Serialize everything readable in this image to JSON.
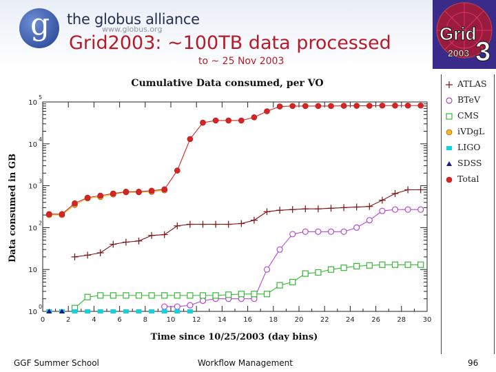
{
  "header": {
    "brand_name": "the globus alliance",
    "brand_url": "www.globus.org",
    "logo_letter": "g",
    "title": "Grid2003: ~100TB data processed",
    "subtitle": "to ~ 25 Nov 2003",
    "grid_logo_top": "Grid",
    "grid_logo_bottom": "2003",
    "grid_logo_digit": "3"
  },
  "footer": {
    "left": "GGF Summer School",
    "center": "Workflow Management",
    "page_number": "96"
  },
  "colors": {
    "title_red": "#b81a28",
    "atlas": "#7a1010",
    "btev": "#b545d2",
    "cms": "#34b834",
    "ivdgl": "#e8c21a",
    "ligo": "#10d2e0",
    "sdss": "#1a1a8c",
    "total": "#d42424"
  },
  "chart_data": {
    "type": "line",
    "title": "Cumulative Data consumed, per VO",
    "xlabel": "Time since 10/25/2003 (day bins)",
    "ylabel": "Data consumed in GB",
    "yscale": "log",
    "xlim": [
      0,
      30
    ],
    "ylim": [
      1,
      100000
    ],
    "xticks": [
      0,
      2,
      4,
      6,
      8,
      10,
      12,
      14,
      16,
      18,
      20,
      22,
      24,
      26,
      28,
      30
    ],
    "xtick_labels": [
      "0",
      "2",
      "4",
      "6",
      "8",
      "10",
      "12",
      "14",
      "16",
      "18",
      "20",
      "22",
      "24",
      "26",
      "28",
      "30"
    ],
    "yticks": [
      {
        "base": "10",
        "exp": "0",
        "value": 1
      },
      {
        "base": "10",
        "exp": "",
        "value": 10
      },
      {
        "base": "10",
        "exp": "2",
        "value": 100
      },
      {
        "base": "10",
        "exp": "3",
        "value": 1000
      },
      {
        "base": "10",
        "exp": "4",
        "value": 10000
      },
      {
        "base": "10",
        "exp": "5",
        "value": 100000
      }
    ],
    "series": [
      {
        "name": "ATLAS",
        "marker": "plus",
        "color": "#7a1010",
        "x": [
          2.5,
          3.5,
          4.5,
          5.5,
          6.5,
          7.5,
          8.5,
          9.5,
          10.5,
          11.5,
          12.5,
          13.5,
          14.5,
          15.5,
          16.5,
          17.5,
          18.5,
          19.5,
          20.5,
          21.5,
          22.5,
          23.5,
          24.5,
          25.5,
          26.5,
          27.5,
          28.5,
          29.5
        ],
        "y": [
          20,
          22,
          25,
          40,
          45,
          48,
          65,
          68,
          110,
          120,
          120,
          120,
          120,
          125,
          150,
          240,
          260,
          270,
          280,
          280,
          290,
          300,
          310,
          320,
          450,
          650,
          800,
          800
        ]
      },
      {
        "name": "BTeV",
        "marker": "circle",
        "color": "#b545d2",
        "x": [
          9.5,
          10.5,
          11.5,
          12.5,
          13.5,
          14.5,
          15.5,
          16.5,
          17.5,
          18.5,
          19.5,
          20.5,
          21.5,
          22.5,
          23.5,
          24.5,
          25.5,
          26.5,
          27.5,
          28.5,
          29.5
        ],
        "y": [
          1.3,
          1.3,
          1.4,
          1.8,
          2.0,
          2.0,
          2.0,
          2.0,
          10,
          30,
          70,
          80,
          80,
          80,
          80,
          100,
          150,
          250,
          270,
          270,
          270
        ]
      },
      {
        "name": "CMS",
        "marker": "square",
        "color": "#34b834",
        "x": [
          2.5,
          3.5,
          4.5,
          5.5,
          6.5,
          7.5,
          8.5,
          9.5,
          10.5,
          11.5,
          12.5,
          13.5,
          14.5,
          15.5,
          16.5,
          17.5,
          18.5,
          19.5,
          20.5,
          21.5,
          22.5,
          23.5,
          24.5,
          25.5,
          26.5,
          27.5,
          28.5,
          29.5
        ],
        "y": [
          1.2,
          2.2,
          2.4,
          2.4,
          2.4,
          2.4,
          2.4,
          2.4,
          2.4,
          2.4,
          2.4,
          2.4,
          2.5,
          2.6,
          2.6,
          2.6,
          4.2,
          5.0,
          8.0,
          8.5,
          10,
          11,
          12,
          12.5,
          13,
          13,
          13,
          13
        ]
      },
      {
        "name": "iVDgL",
        "marker": "dot",
        "color": "#e8c21a",
        "x": [
          0.5,
          1.5,
          2.5,
          3.5,
          4.5,
          5.5,
          6.5,
          7.5,
          8.5,
          9.5
        ],
        "y": [
          200,
          200,
          350,
          500,
          540,
          620,
          700,
          700,
          720,
          780
        ]
      },
      {
        "name": "LIGO",
        "marker": "bigsquare",
        "color": "#10d2e0",
        "x": [
          0.5,
          1.5,
          2.5,
          3.5,
          4.5,
          5.5,
          6.5,
          7.5,
          8.5,
          9.5,
          10.5,
          11.5
        ],
        "y": [
          1,
          1,
          1,
          1,
          1,
          1,
          1,
          1,
          1,
          1,
          1,
          1
        ]
      },
      {
        "name": "SDSS",
        "marker": "triangle",
        "color": "#1a1a8c",
        "x": [
          0.5,
          1.5
        ],
        "y": [
          1,
          1
        ]
      },
      {
        "name": "Total",
        "marker": "dot",
        "color": "#d42424",
        "x": [
          0.5,
          1.5,
          2.5,
          3.5,
          4.5,
          5.5,
          6.5,
          7.5,
          8.5,
          9.5,
          10.5,
          11.5,
          12.5,
          13.5,
          14.5,
          15.5,
          16.5,
          17.5,
          18.5,
          19.5,
          20.5,
          21.5,
          22.5,
          23.5,
          24.5,
          25.5,
          26.5,
          27.5,
          28.5,
          29.5
        ],
        "y": [
          210,
          210,
          380,
          520,
          580,
          650,
          720,
          720,
          760,
          820,
          2300,
          13000,
          32000,
          36000,
          36000,
          36000,
          43000,
          60000,
          78000,
          80000,
          80000,
          80000,
          80000,
          81000,
          81000,
          81000,
          82000,
          82000,
          82000,
          82000
        ]
      }
    ]
  }
}
